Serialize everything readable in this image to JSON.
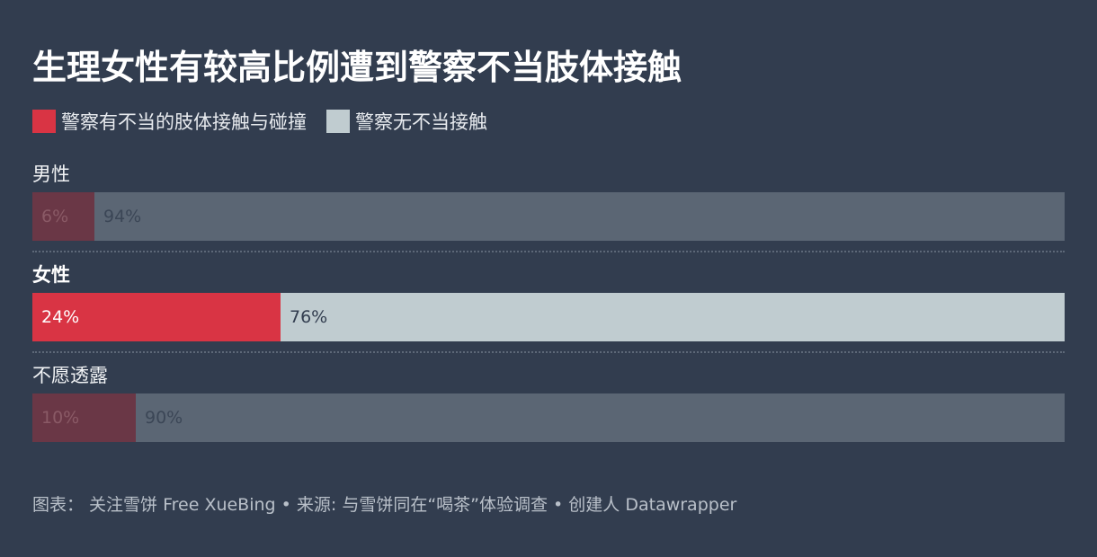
{
  "title": "生理女性有较高比例遭到警察不当肢体接触",
  "legend": [
    {
      "label": "警察有不当的肢体接触与碰撞",
      "color": "#d93444"
    },
    {
      "label": "警察无不当接触",
      "color": "#c0ccd0"
    }
  ],
  "footer": "图表： 关注雪饼 Free XueBing • 来源: 与雪饼同在“喝茶”体验调查 • 创建人 Datawrapper",
  "chart_data": {
    "type": "bar",
    "orientation": "horizontal",
    "stacked": true,
    "percent": true,
    "highlighted_category": "女性",
    "categories": [
      "男性",
      "女性",
      "不愿透露"
    ],
    "series": [
      {
        "name": "警察有不当的肢体接触与碰撞",
        "color": "#d93444",
        "values": [
          6,
          24,
          10
        ]
      },
      {
        "name": "警察无不当接触",
        "color": "#c0ccd0",
        "values": [
          94,
          76,
          90
        ]
      }
    ],
    "value_labels": [
      [
        "6%",
        "94%"
      ],
      [
        "24%",
        "76%"
      ],
      [
        "10%",
        "90%"
      ]
    ],
    "dimmed_colors": [
      "#6a3746",
      "#5b6674"
    ],
    "xlim": [
      0,
      100
    ]
  }
}
